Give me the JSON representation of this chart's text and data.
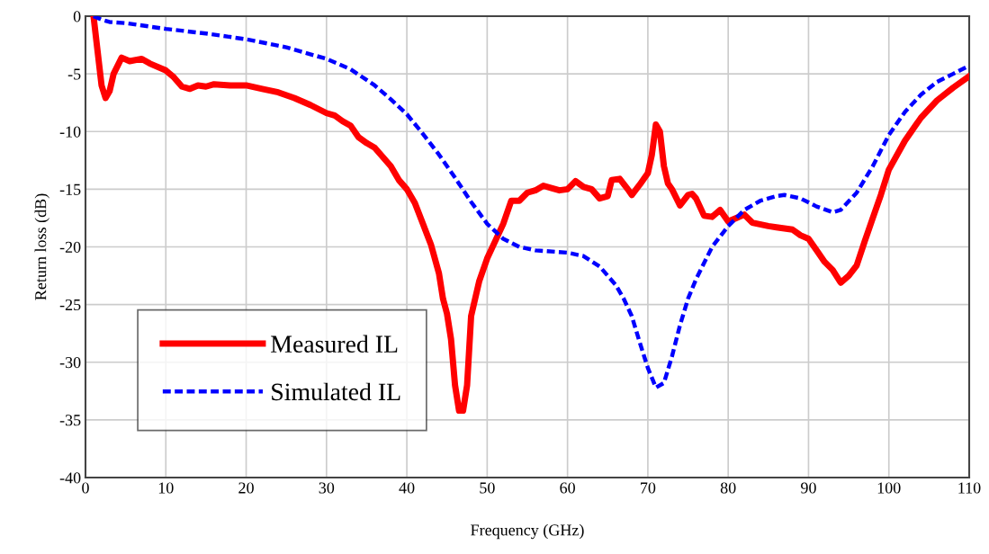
{
  "chart_data": {
    "type": "line",
    "xlabel": "Frequency (GHz)",
    "ylabel": "Return loss (dB)",
    "xlim": [
      0,
      110
    ],
    "xticks": [
      0,
      10,
      20,
      30,
      40,
      50,
      60,
      70,
      80,
      90,
      100,
      110
    ],
    "ylim": [
      -40,
      0
    ],
    "yticks": [
      -40,
      -35,
      -30,
      -25,
      -20,
      -15,
      -10,
      -5,
      0
    ],
    "grid": true,
    "legend": "bottom left",
    "series": [
      {
        "name": "Measured IL",
        "color": "#ff0000",
        "line_style": "solid",
        "x": [
          1,
          1.5,
          2,
          2.5,
          3,
          3.5,
          4.5,
          5.5,
          7,
          8,
          10,
          11,
          12,
          13,
          14,
          15,
          16,
          18,
          20,
          22,
          24,
          26,
          28,
          30,
          31,
          32,
          33,
          34,
          35,
          36,
          37,
          38,
          39,
          40,
          41,
          42,
          43,
          44,
          44.5,
          45,
          45.5,
          46,
          46.5,
          47,
          47.5,
          48,
          49,
          50,
          51,
          52,
          53,
          54,
          55,
          56,
          57,
          58,
          59,
          60,
          61,
          62,
          63,
          64,
          65,
          65.5,
          66.5,
          67.5,
          68,
          69,
          70,
          70.5,
          71,
          71.5,
          72,
          72.5,
          73,
          74,
          75,
          75.5,
          76,
          77,
          78,
          79,
          80,
          81,
          82,
          83,
          85,
          86,
          87,
          88,
          89,
          90,
          91,
          92,
          93,
          94,
          95,
          96,
          97,
          98,
          99,
          100,
          102,
          104,
          106,
          108,
          110
        ],
        "values": [
          0,
          -3,
          -6,
          -7.1,
          -6.5,
          -5,
          -3.6,
          -3.9,
          -3.7,
          -4.1,
          -4.7,
          -5.3,
          -6.1,
          -6.3,
          -6,
          -6.1,
          -5.9,
          -6,
          -6,
          -6.3,
          -6.6,
          -7.1,
          -7.7,
          -8.4,
          -8.6,
          -9.1,
          -9.5,
          -10.5,
          -11,
          -11.4,
          -12.2,
          -13,
          -14.2,
          -15,
          -16.2,
          -18,
          -19.8,
          -22.3,
          -24.5,
          -25.8,
          -28,
          -32,
          -34.2,
          -34.2,
          -32,
          -26,
          -23,
          -21,
          -19.5,
          -18,
          -16,
          -16,
          -15.3,
          -15.1,
          -14.7,
          -14.9,
          -15.1,
          -15,
          -14.3,
          -14.8,
          -15,
          -15.8,
          -15.6,
          -14.2,
          -14.1,
          -15,
          -15.5,
          -14.6,
          -13.6,
          -12,
          -9.4,
          -10,
          -13,
          -14.5,
          -15,
          -16.4,
          -15.5,
          -15.4,
          -15.8,
          -17.3,
          -17.4,
          -16.8,
          -17.8,
          -17.5,
          -17.2,
          -17.9,
          -18.2,
          -18.3,
          -18.4,
          -18.5,
          -19,
          -19.3,
          -20.3,
          -21.3,
          -22,
          -23.1,
          -22.5,
          -21.6,
          -19.5,
          -17.5,
          -15.5,
          -13.3,
          -10.8,
          -8.8,
          -7.3,
          -6.2,
          -5.2
        ]
      },
      {
        "name": "Simulated IL",
        "color": "#0000ff",
        "line_style": "dashed",
        "x": [
          1,
          2,
          3,
          5,
          10,
          15,
          20,
          25,
          30,
          33,
          36,
          38,
          40,
          42,
          44,
          46,
          48,
          50,
          52,
          54,
          56,
          60,
          62,
          64,
          66,
          67,
          68,
          69,
          70,
          71,
          72,
          73,
          74,
          75,
          76,
          78,
          80,
          82,
          84,
          86,
          87,
          89,
          91,
          93,
          94,
          96,
          98,
          100,
          102,
          104,
          106,
          108,
          110
        ],
        "values": [
          0,
          -0.3,
          -0.5,
          -0.6,
          -1.1,
          -1.5,
          -2,
          -2.7,
          -3.7,
          -4.6,
          -6,
          -7.2,
          -8.5,
          -10.2,
          -12,
          -14,
          -16.1,
          -18,
          -19.3,
          -20,
          -20.3,
          -20.5,
          -20.8,
          -21.7,
          -23.3,
          -24.5,
          -26,
          -28.3,
          -30.5,
          -32.2,
          -31.8,
          -29.5,
          -26.8,
          -24.5,
          -22.8,
          -20,
          -18.2,
          -16.8,
          -16,
          -15.6,
          -15.5,
          -15.8,
          -16.5,
          -17,
          -16.8,
          -15.3,
          -13,
          -10.3,
          -8.3,
          -6.8,
          -5.7,
          -5,
          -4.3
        ]
      }
    ]
  }
}
